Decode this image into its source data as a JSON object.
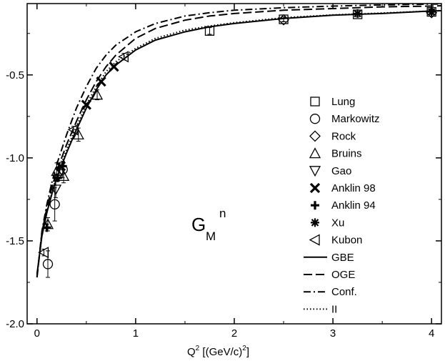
{
  "chart_data": {
    "type": "scatter",
    "xlabel": {
      "base": "Q",
      "sup": "2",
      "rest": " [(GeV/c)",
      "sup2": "2",
      "end": "]"
    },
    "ylabel": "",
    "xlim": [
      -0.1,
      4.1
    ],
    "ylim": [
      -2.0,
      -0.07
    ],
    "x_ticks": [
      0,
      1,
      2,
      3,
      4
    ],
    "x_tick_labels": [
      "0",
      "1",
      "2",
      "3",
      "4"
    ],
    "y_ticks": [
      -2.0,
      -1.5,
      -1.0,
      -0.5
    ],
    "y_tick_labels": [
      "-2.0",
      "-1.5",
      "-1.0",
      "-0.5"
    ],
    "annotation": {
      "main": "G",
      "sub": "M",
      "sup": "n"
    },
    "legend_position": "right",
    "series": [
      {
        "name": "Lung",
        "marker": "square",
        "points": [
          {
            "x": 1.75,
            "y": -0.235,
            "err": 0.02
          },
          {
            "x": 2.5,
            "y": -0.165,
            "err": 0.015
          },
          {
            "x": 3.25,
            "y": -0.135,
            "err": 0.015
          },
          {
            "x": 4.0,
            "y": -0.12,
            "err": 0.015
          }
        ]
      },
      {
        "name": "Markowitz",
        "marker": "circle",
        "points": [
          {
            "x": 0.11,
            "y": -1.64,
            "err": 0.08
          },
          {
            "x": 0.18,
            "y": -1.28,
            "err": 0.1
          },
          {
            "x": 0.26,
            "y": -1.07,
            "err": 0.05
          }
        ]
      },
      {
        "name": "Rock",
        "marker": "diamond",
        "points": [
          {
            "x": 2.5,
            "y": -0.168,
            "err": 0.01
          },
          {
            "x": 4.0,
            "y": -0.125,
            "err": 0.01
          }
        ]
      },
      {
        "name": "Bruins",
        "marker": "triangle-up",
        "points": [
          {
            "x": 0.11,
            "y": -1.4,
            "err": 0.04
          },
          {
            "x": 0.2,
            "y": -1.08,
            "err": 0.05
          },
          {
            "x": 0.27,
            "y": -1.11,
            "err": 0.04
          },
          {
            "x": 0.42,
            "y": -0.86,
            "err": 0.04
          },
          {
            "x": 0.61,
            "y": -0.62,
            "err": 0.03
          }
        ]
      },
      {
        "name": "Gao",
        "marker": "triangle-down",
        "points": [
          {
            "x": 0.19,
            "y": -1.19,
            "err": 0.05
          }
        ]
      },
      {
        "name": "Anklin 98",
        "marker": "x",
        "points": [
          {
            "x": 0.24,
            "y": -1.05,
            "err": 0.0
          },
          {
            "x": 0.5,
            "y": -0.68,
            "err": 0.0
          },
          {
            "x": 0.65,
            "y": -0.54,
            "err": 0.0
          },
          {
            "x": 0.78,
            "y": -0.45,
            "err": 0.0
          }
        ]
      },
      {
        "name": "Anklin 94",
        "marker": "plus",
        "points": [
          {
            "x": 0.1,
            "y": -1.42,
            "err": 0.02
          },
          {
            "x": 0.21,
            "y": -1.12,
            "err": 0.02
          },
          {
            "x": 0.26,
            "y": -1.05,
            "err": 0.02
          }
        ]
      },
      {
        "name": "Xu",
        "marker": "asterisk",
        "points": [
          {
            "x": 3.25,
            "y": -0.13,
            "err": 0.01
          },
          {
            "x": 4.0,
            "y": -0.12,
            "err": 0.01
          }
        ]
      },
      {
        "name": "Kubon",
        "marker": "triangle-left",
        "points": [
          {
            "x": 0.07,
            "y": -1.57,
            "err": 0.02
          },
          {
            "x": 0.37,
            "y": -0.83,
            "err": 0.02
          },
          {
            "x": 0.88,
            "y": -0.39,
            "err": 0.02
          }
        ]
      }
    ],
    "curves": [
      {
        "name": "GBE",
        "dash": "solid",
        "points": [
          [
            0,
            -1.7
          ],
          [
            0.05,
            -1.47
          ],
          [
            0.1,
            -1.33
          ],
          [
            0.15,
            -1.22
          ],
          [
            0.2,
            -1.12
          ],
          [
            0.3,
            -0.97
          ],
          [
            0.4,
            -0.83
          ],
          [
            0.5,
            -0.7
          ],
          [
            0.6,
            -0.59
          ],
          [
            0.7,
            -0.5
          ],
          [
            0.8,
            -0.44
          ],
          [
            1.0,
            -0.35
          ],
          [
            1.2,
            -0.29
          ],
          [
            1.5,
            -0.24
          ],
          [
            1.75,
            -0.21
          ],
          [
            2.0,
            -0.19
          ],
          [
            2.5,
            -0.16
          ],
          [
            3.0,
            -0.14
          ],
          [
            3.5,
            -0.13
          ],
          [
            4.0,
            -0.115
          ],
          [
            4.1,
            -0.113
          ]
        ]
      },
      {
        "name": "OGE",
        "dash": "dashed",
        "points": [
          [
            0,
            -1.72
          ],
          [
            0.05,
            -1.45
          ],
          [
            0.1,
            -1.3
          ],
          [
            0.15,
            -1.18
          ],
          [
            0.2,
            -1.08
          ],
          [
            0.3,
            -0.92
          ],
          [
            0.4,
            -0.78
          ],
          [
            0.5,
            -0.65
          ],
          [
            0.6,
            -0.54
          ],
          [
            0.7,
            -0.45
          ],
          [
            0.8,
            -0.38
          ],
          [
            1.0,
            -0.28
          ],
          [
            1.2,
            -0.22
          ],
          [
            1.5,
            -0.17
          ],
          [
            1.75,
            -0.145
          ],
          [
            2.0,
            -0.13
          ],
          [
            2.5,
            -0.11
          ],
          [
            3.0,
            -0.1
          ],
          [
            3.5,
            -0.09
          ],
          [
            4.0,
            -0.085
          ],
          [
            4.1,
            -0.083
          ]
        ]
      },
      {
        "name": "Conf.",
        "dash": "dashdot",
        "points": [
          [
            0,
            -1.72
          ],
          [
            0.05,
            -1.44
          ],
          [
            0.1,
            -1.28
          ],
          [
            0.15,
            -1.15
          ],
          [
            0.2,
            -1.04
          ],
          [
            0.3,
            -0.86
          ],
          [
            0.4,
            -0.7
          ],
          [
            0.5,
            -0.57
          ],
          [
            0.6,
            -0.46
          ],
          [
            0.7,
            -0.38
          ],
          [
            0.8,
            -0.32
          ],
          [
            1.0,
            -0.24
          ],
          [
            1.2,
            -0.19
          ],
          [
            1.5,
            -0.145
          ],
          [
            1.75,
            -0.125
          ],
          [
            2.0,
            -0.11
          ],
          [
            2.5,
            -0.095
          ],
          [
            3.0,
            -0.085
          ],
          [
            3.5,
            -0.078
          ],
          [
            4.0,
            -0.073
          ],
          [
            4.1,
            -0.072
          ]
        ]
      },
      {
        "name": "II",
        "dash": "dotted",
        "points": [
          [
            0,
            -1.71
          ],
          [
            0.05,
            -1.47
          ],
          [
            0.1,
            -1.33
          ],
          [
            0.15,
            -1.21
          ],
          [
            0.2,
            -1.11
          ],
          [
            0.3,
            -0.95
          ],
          [
            0.4,
            -0.81
          ],
          [
            0.5,
            -0.68
          ],
          [
            0.6,
            -0.57
          ],
          [
            0.7,
            -0.48
          ],
          [
            0.8,
            -0.42
          ],
          [
            1.0,
            -0.34
          ],
          [
            1.2,
            -0.28
          ],
          [
            1.5,
            -0.23
          ],
          [
            1.75,
            -0.205
          ],
          [
            2.0,
            -0.185
          ],
          [
            2.5,
            -0.155
          ],
          [
            3.0,
            -0.138
          ],
          [
            3.5,
            -0.127
          ],
          [
            4.0,
            -0.115
          ],
          [
            4.1,
            -0.112
          ]
        ]
      }
    ]
  }
}
